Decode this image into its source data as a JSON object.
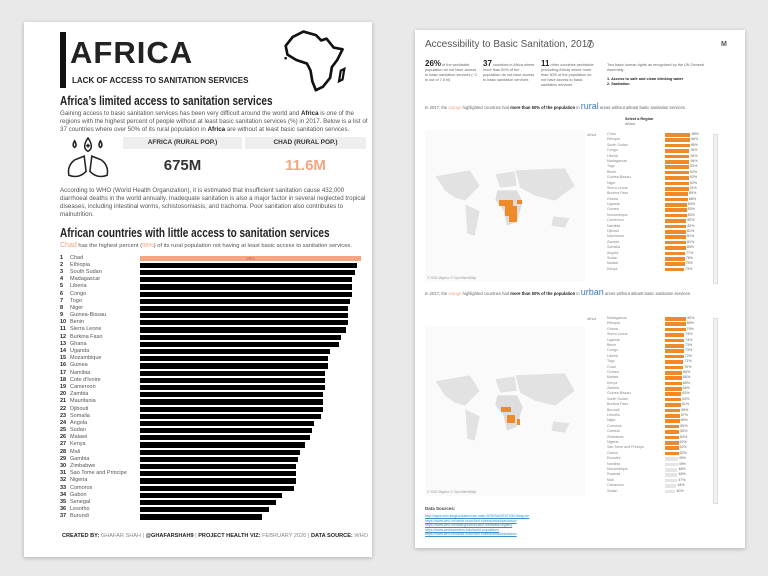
{
  "left": {
    "title": "AFRICA",
    "subtitle": "LACK OF ACCESS TO SANITATION SERVICES",
    "heading1": "Africa’s limited access to sanitation services",
    "intro": {
      "p1": "Gaining access to basic sanitation services has been very difficult around the world and ",
      "b1": "Africa",
      "p2": " is one of the regions with the highest percent of people without at least basic sanitation services (%) in 2017. Below is a list of 37 countries where over 50% of its rural population in ",
      "b2": "Africa",
      "p3": " are without at least basic sanitation services."
    },
    "kpi": [
      {
        "label": "AFRICA (RURAL POP.)",
        "value": "675M",
        "color": "#333333"
      },
      {
        "label": "CHAD (RURAL POP.)",
        "value": "11.6M",
        "color": "#f4a582"
      }
    ],
    "who_text": "According to WHO (World Health Organization), it is estimated that insufficient sanitation cause 432,000 diarrhoeal deaths in the world annually. Inadequate sanitation is also a major factor in several neglected tropical diseases, including intestinal worms, schistosomiasis, and trachoma. Poor sanitation also contributes to malnutrition.",
    "heading2": "African countries with little access to sanitation services",
    "sub2": {
      "country": "Chad",
      "p1": " has the highest percent (",
      "pct": "98%",
      "p2": ") of its rural population not having at least basic access to sanitation services."
    },
    "footer": {
      "k1": "CREATED BY:",
      "v1": " GHAFAR SHAH | ",
      "k2": "@GHAFARSHAH9",
      "v2": " | ",
      "k3": "PROJECT HEALTH VIZ:",
      "v3": " FEBRUARY 2020 | ",
      "k4": "DATA SOURCE:",
      "v4": " WHO"
    },
    "icons": {
      "logo": "africa-outline-icon",
      "hands": "hand-washing-icon"
    }
  },
  "chart_data": {
    "type": "bar",
    "orientation": "horizontal",
    "highlight_color": "#f4a582",
    "bar_color": "#000000",
    "xlim": [
      0,
      100
    ],
    "categories": [
      "Chad",
      "Ethiopia",
      "South Sudan",
      "Madagascar",
      "Liberia",
      "Congo",
      "Togo",
      "Niger",
      "Guinea-Bissau",
      "Benin",
      "Sierra Leone",
      "Burkina Faso",
      "Ghana",
      "Uganda",
      "Mozambique",
      "Guinea",
      "Namibia",
      "Cote d'Ivoire",
      "Cameroon",
      "Zambia",
      "Mauritania",
      "Djibouti",
      "Somalia",
      "Angola",
      "Sudan",
      "Malawi",
      "Kenya",
      "Mali",
      "Gambia",
      "Zimbabwe",
      "Sao Tome and Principe",
      "Nigeria",
      "Comoros",
      "Gabon",
      "Senegal",
      "Lesotho",
      "Burundi"
    ],
    "values": [
      98,
      96,
      95,
      94,
      94,
      94,
      93,
      92,
      92,
      92,
      91,
      89,
      88,
      84,
      83,
      83,
      82,
      82,
      82,
      81,
      81,
      81,
      80,
      77,
      76,
      75,
      73,
      71,
      70,
      69,
      69,
      69,
      68,
      63,
      60,
      57,
      54
    ],
    "data_labels": {
      "Chad": "98%"
    }
  },
  "right": {
    "title": "Accessibility to Basic Sanitation, 2017",
    "stats": [
      {
        "big": "26%",
        "text": " of the worldwide population do not have access to basic sanitation services (~2 bi out of 7.8 bi)"
      },
      {
        "big": "37",
        "text": " countries in Africa where more than 50% of the population do not have access to basic sanitation services"
      },
      {
        "big": "11",
        "text": " other countries worldwide (excluding Africa) where more than 50% of the population do not have access to basic sanitation services"
      }
    ],
    "rights": {
      "intro": "Two basic human rights as recognized by the UN General Assembly:",
      "items": [
        "1. Access to safe and clean drinking water",
        "2. Sanitation"
      ]
    },
    "rural_sentence": {
      "p1": "In 2017, the ",
      "orange": "orange",
      "p2": " highlighted countries had ",
      "b": "more than 50% of the population",
      "p3": " in ",
      "area": "rural",
      "p4": " areas without atleast basic sanitation services."
    },
    "urban_sentence": {
      "p1": "In 2017, the ",
      "orange": "orange",
      "p2": " highlighted countries had ",
      "b": "more than 50% of the population",
      "p3": " in ",
      "area": "urban",
      "p4": " areas without atleast basic sanitation services."
    },
    "select_region": {
      "label": "Select a Region",
      "value": "Africa"
    },
    "region": "Africa",
    "map_credit": "© 2020 Mapbox © OpenStreetMap",
    "rural_list": [
      [
        "Chad",
        "98%"
      ],
      [
        "Ethiopia",
        "96%"
      ],
      [
        "South Sudan",
        "95%"
      ],
      [
        "Congo",
        "94%"
      ],
      [
        "Liberia",
        "94%"
      ],
      [
        "Madagascar",
        "94%"
      ],
      [
        "Togo",
        "93%"
      ],
      [
        "Benin",
        "92%"
      ],
      [
        "Guinea-Bissau",
        "92%"
      ],
      [
        "Niger",
        "92%"
      ],
      [
        "Sierra Leone",
        "91%"
      ],
      [
        "Burkina Faso",
        "89%"
      ],
      [
        "Ghana",
        "88%"
      ],
      [
        "Uganda",
        "84%"
      ],
      [
        "Guinea",
        "83%"
      ],
      [
        "Mozambique",
        "83%"
      ],
      [
        "Cameroon",
        "82%"
      ],
      [
        "Namibia",
        "82%"
      ],
      [
        "Djibouti",
        "81%"
      ],
      [
        "Mauritania",
        "81%"
      ],
      [
        "Zambia",
        "81%"
      ],
      [
        "Somalia",
        "80%"
      ],
      [
        "Angola",
        "77%"
      ],
      [
        "Sudan",
        "76%"
      ],
      [
        "Malawi",
        "75%"
      ],
      [
        "Kenya",
        "73%"
      ]
    ],
    "urban_list": [
      [
        "Madagascar",
        "82%"
      ],
      [
        "Ethiopia",
        "80%"
      ],
      [
        "Ghana",
        "79%"
      ],
      [
        "Sierra Leone",
        "74%"
      ],
      [
        "Uganda",
        "74%"
      ],
      [
        "Benin",
        "73%"
      ],
      [
        "Congo",
        "73%"
      ],
      [
        "Liberia",
        "72%"
      ],
      [
        "Togo",
        "71%"
      ],
      [
        "Chad",
        "70%"
      ],
      [
        "Guinea",
        "66%"
      ],
      [
        "Malawi",
        "66%"
      ],
      [
        "Kenya",
        "65%"
      ],
      [
        "Zambia",
        "64%"
      ],
      [
        "Guinea-Bissau",
        "63%"
      ],
      [
        "South Sudan",
        "63%"
      ],
      [
        "Burkina Faso",
        "61%"
      ],
      [
        "Burundi",
        "58%"
      ],
      [
        "Lesotho",
        "57%"
      ],
      [
        "Niger",
        "56%"
      ],
      [
        "Comoros",
        "55%"
      ],
      [
        "Gambia",
        "55%"
      ],
      [
        "Zimbabwe",
        "54%"
      ],
      [
        "Nigeria",
        "52%"
      ],
      [
        "Sao Tome and Principe",
        "52%"
      ],
      [
        "Gabon",
        "52%"
      ],
      [
        "Eswatini",
        "49%"
      ],
      [
        "Namibia",
        "49%"
      ],
      [
        "Mozambique",
        "48%"
      ],
      [
        "Rwanda",
        "48%"
      ],
      [
        "Mali",
        "47%"
      ],
      [
        "Cameroon",
        "44%"
      ],
      [
        "Sudan",
        "40%"
      ]
    ],
    "data_sources_label": "Data Sources:",
    "data_sources": [
      "http://apps.who.int/gho/data/node.main.WSHSANITATION?lang=en",
      "https://www.who.int/news-room/fact-sheets/detail/sanitation",
      "https://www.who.int/data/gho/indicator-metadata-registry",
      "https://www.worldometers.info/world-population/",
      "https://www.who.int/news-room/fact-sheets/detail/sanitation"
    ],
    "colors": {
      "highlight": "#ee8a2a",
      "below": "#e5e5e5",
      "rural_text": "#3a7ab8"
    }
  }
}
